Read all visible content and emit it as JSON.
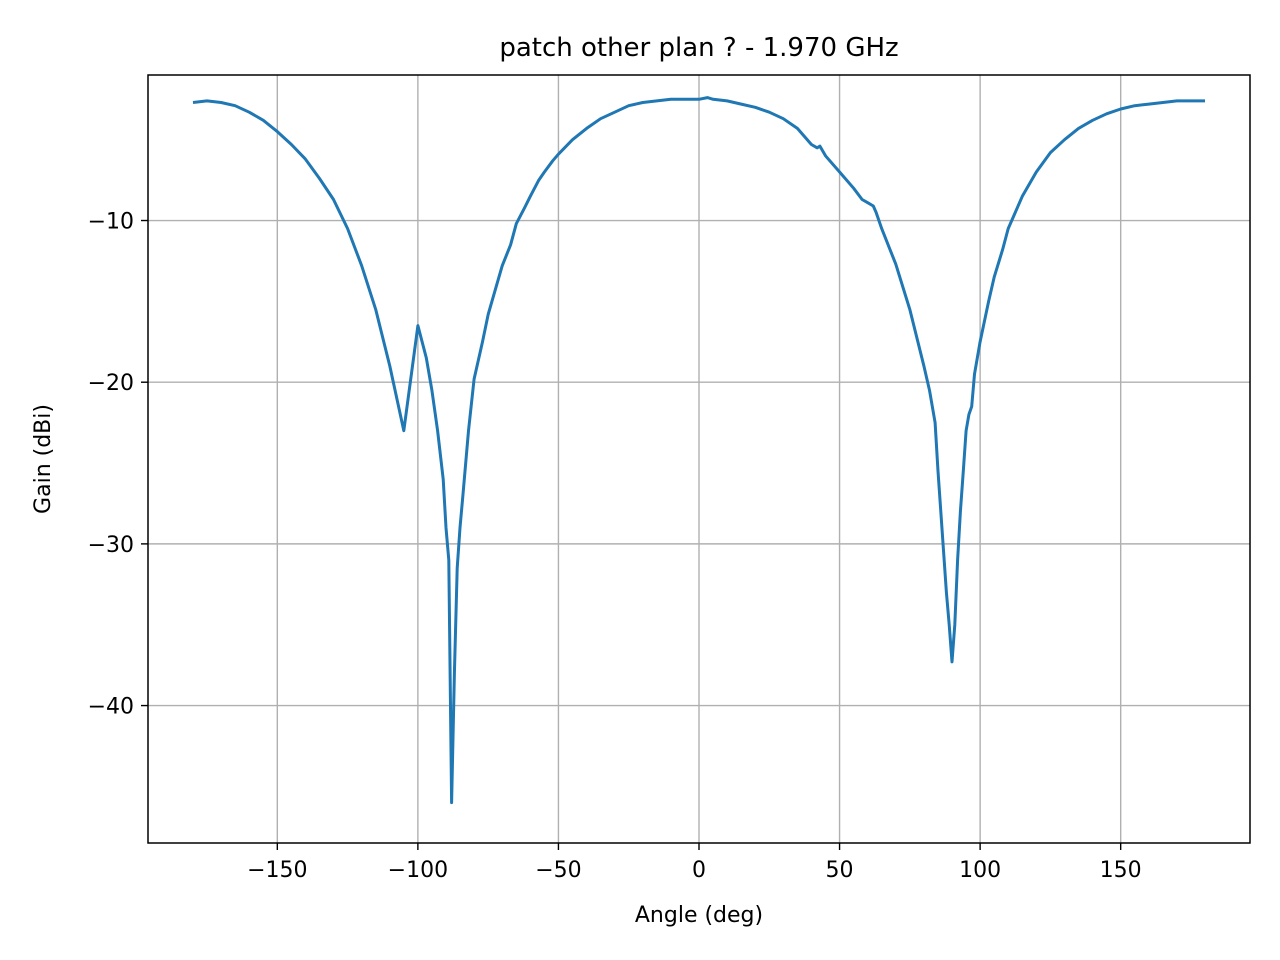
{
  "chart_data": {
    "type": "line",
    "title": "patch other plan ? - 1.970 GHz",
    "xlabel": "Angle (deg)",
    "ylabel": "Gain (dBi)",
    "xlim": [
      -196,
      196
    ],
    "ylim": [
      -48.5,
      -1.0
    ],
    "xticks": [
      -150,
      -100,
      -50,
      0,
      50,
      100,
      150
    ],
    "yticks": [
      -40,
      -30,
      -20,
      -10
    ],
    "xtick_labels": [
      "−150",
      "−100",
      "−50",
      "0",
      "50",
      "100",
      "150"
    ],
    "ytick_labels": [
      "−40",
      "−30",
      "−20",
      "−10"
    ],
    "grid": true,
    "color": "#1f77b4",
    "series": [
      {
        "x": [
          -180,
          -175,
          -170,
          -165,
          -160,
          -155,
          -150,
          -145,
          -140,
          -135,
          -130,
          -125,
          -120,
          -115,
          -110,
          -105,
          -100,
          -97,
          -95,
          -93,
          -91,
          -90,
          -89,
          -88,
          -87,
          -86,
          -85,
          -84,
          -82,
          -80,
          -77,
          -75,
          -72,
          -70,
          -67,
          -65,
          -62,
          -60,
          -57,
          -55,
          -52,
          -50,
          -45,
          -40,
          -35,
          -30,
          -25,
          -20,
          -15,
          -10,
          -5,
          0,
          3,
          5,
          10,
          15,
          20,
          25,
          30,
          35,
          40,
          42,
          43,
          45,
          50,
          55,
          58,
          60,
          62,
          63,
          65,
          70,
          75,
          80,
          82,
          84,
          85,
          86,
          87,
          88,
          89,
          90,
          91,
          92,
          93,
          94,
          95,
          96,
          97,
          98,
          100,
          103,
          105,
          108,
          110,
          115,
          120,
          125,
          130,
          135,
          140,
          145,
          150,
          155,
          160,
          165,
          170,
          175,
          180
        ],
        "y": [
          -2.7,
          -2.6,
          -2.7,
          -2.9,
          -3.3,
          -3.8,
          -4.5,
          -5.3,
          -6.2,
          -7.4,
          -8.7,
          -10.5,
          -12.8,
          -15.5,
          -19.0,
          -23.0,
          -16.5,
          -18.5,
          -20.5,
          -23.0,
          -26.0,
          -29.0,
          -31.0,
          -46.0,
          -38.0,
          -31.5,
          -29.0,
          -27.0,
          -23.0,
          -19.8,
          -17.5,
          -15.8,
          -14.0,
          -12.8,
          -11.5,
          -10.2,
          -9.2,
          -8.5,
          -7.5,
          -7.0,
          -6.3,
          -5.9,
          -5.0,
          -4.3,
          -3.7,
          -3.3,
          -2.9,
          -2.7,
          -2.6,
          -2.5,
          -2.5,
          -2.5,
          -2.4,
          -2.5,
          -2.6,
          -2.8,
          -3.0,
          -3.3,
          -3.7,
          -4.3,
          -5.3,
          -5.5,
          -5.4,
          -6.0,
          -7.0,
          -8.0,
          -8.7,
          -8.9,
          -9.1,
          -9.5,
          -10.5,
          -12.7,
          -15.5,
          -19.0,
          -20.5,
          -22.5,
          -25.5,
          -28.0,
          -30.5,
          -33.0,
          -35.0,
          -37.3,
          -35.0,
          -31.0,
          -28.0,
          -25.5,
          -23.0,
          -22.0,
          -21.5,
          -19.5,
          -17.5,
          -15.0,
          -13.5,
          -11.8,
          -10.5,
          -8.5,
          -7.0,
          -5.8,
          -5.0,
          -4.3,
          -3.8,
          -3.4,
          -3.1,
          -2.9,
          -2.8,
          -2.7,
          -2.6,
          -2.6,
          -2.6
        ]
      }
    ]
  }
}
